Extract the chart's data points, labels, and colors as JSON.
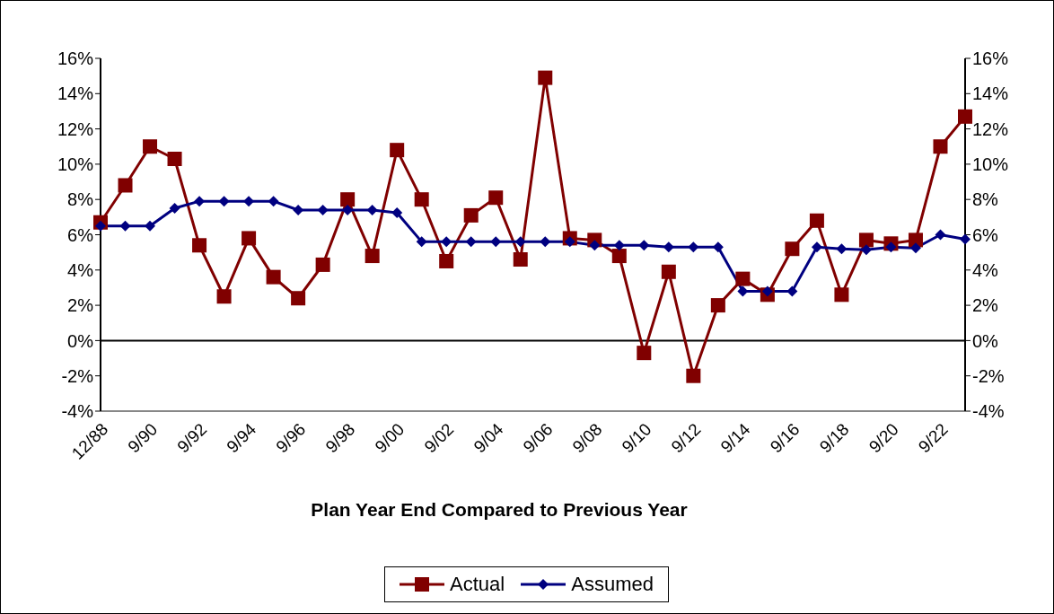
{
  "chart_data": {
    "type": "line",
    "xlabel": "Plan Year End Compared to Previous Year",
    "categories": [
      "12/88",
      null,
      "9/90",
      null,
      "9/92",
      null,
      "9/94",
      null,
      "9/96",
      null,
      "9/98",
      null,
      "9/00",
      null,
      "9/02",
      null,
      "9/04",
      null,
      "9/06",
      null,
      "9/08",
      null,
      "9/10",
      null,
      "9/12",
      null,
      "9/14",
      null,
      "9/16",
      null,
      "9/18",
      null,
      "9/20",
      null,
      "9/22",
      null
    ],
    "series": [
      {
        "name": "Actual",
        "color": "#800000",
        "marker": "square",
        "values": [
          6.7,
          8.8,
          11.0,
          10.3,
          5.4,
          2.5,
          5.8,
          3.6,
          2.4,
          4.3,
          8.0,
          4.8,
          10.8,
          8.0,
          4.5,
          7.1,
          8.1,
          4.6,
          14.9,
          5.8,
          5.7,
          4.8,
          -0.7,
          3.9,
          -2.0,
          2.0,
          3.5,
          2.6,
          5.2,
          6.8,
          2.6,
          5.7,
          5.5,
          5.7,
          11.0,
          12.7
        ]
      },
      {
        "name": "Assumed",
        "color": "#000080",
        "marker": "diamond",
        "values": [
          6.5,
          6.5,
          6.5,
          7.5,
          7.9,
          7.9,
          7.9,
          7.9,
          7.4,
          7.4,
          7.4,
          7.4,
          7.25,
          5.6,
          5.6,
          5.6,
          5.6,
          5.6,
          5.6,
          5.6,
          5.4,
          5.4,
          5.4,
          5.3,
          5.3,
          5.3,
          2.8,
          2.8,
          2.8,
          5.3,
          5.2,
          5.15,
          5.3,
          5.25,
          6.0,
          5.75
        ]
      }
    ],
    "ylim": [
      -4,
      16
    ],
    "yticks": [
      {
        "value": -4,
        "label": "-4%"
      },
      {
        "value": -2,
        "label": "-2%"
      },
      {
        "value": 0,
        "label": "0%"
      },
      {
        "value": 2,
        "label": "2%"
      },
      {
        "value": 4,
        "label": "4%"
      },
      {
        "value": 6,
        "label": "6%"
      },
      {
        "value": 8,
        "label": "8%"
      },
      {
        "value": 10,
        "label": "10%"
      },
      {
        "value": 12,
        "label": "12%"
      },
      {
        "value": 14,
        "label": "14%"
      },
      {
        "value": 16,
        "label": "16%"
      }
    ],
    "y2lim": [
      -4,
      16
    ],
    "y2ticks": [
      {
        "value": -4,
        "label": "-4%"
      },
      {
        "value": -2,
        "label": "-2%"
      },
      {
        "value": 0,
        "label": "0%"
      },
      {
        "value": 2,
        "label": "2%"
      },
      {
        "value": 4,
        "label": "4%"
      },
      {
        "value": 6,
        "label": "6%"
      },
      {
        "value": 8,
        "label": "8%"
      },
      {
        "value": 10,
        "label": "10%"
      },
      {
        "value": 12,
        "label": "12%"
      },
      {
        "value": 14,
        "label": "14%"
      },
      {
        "value": 16,
        "label": "16%"
      }
    ],
    "legend": "bottom",
    "line_style": "solid"
  }
}
